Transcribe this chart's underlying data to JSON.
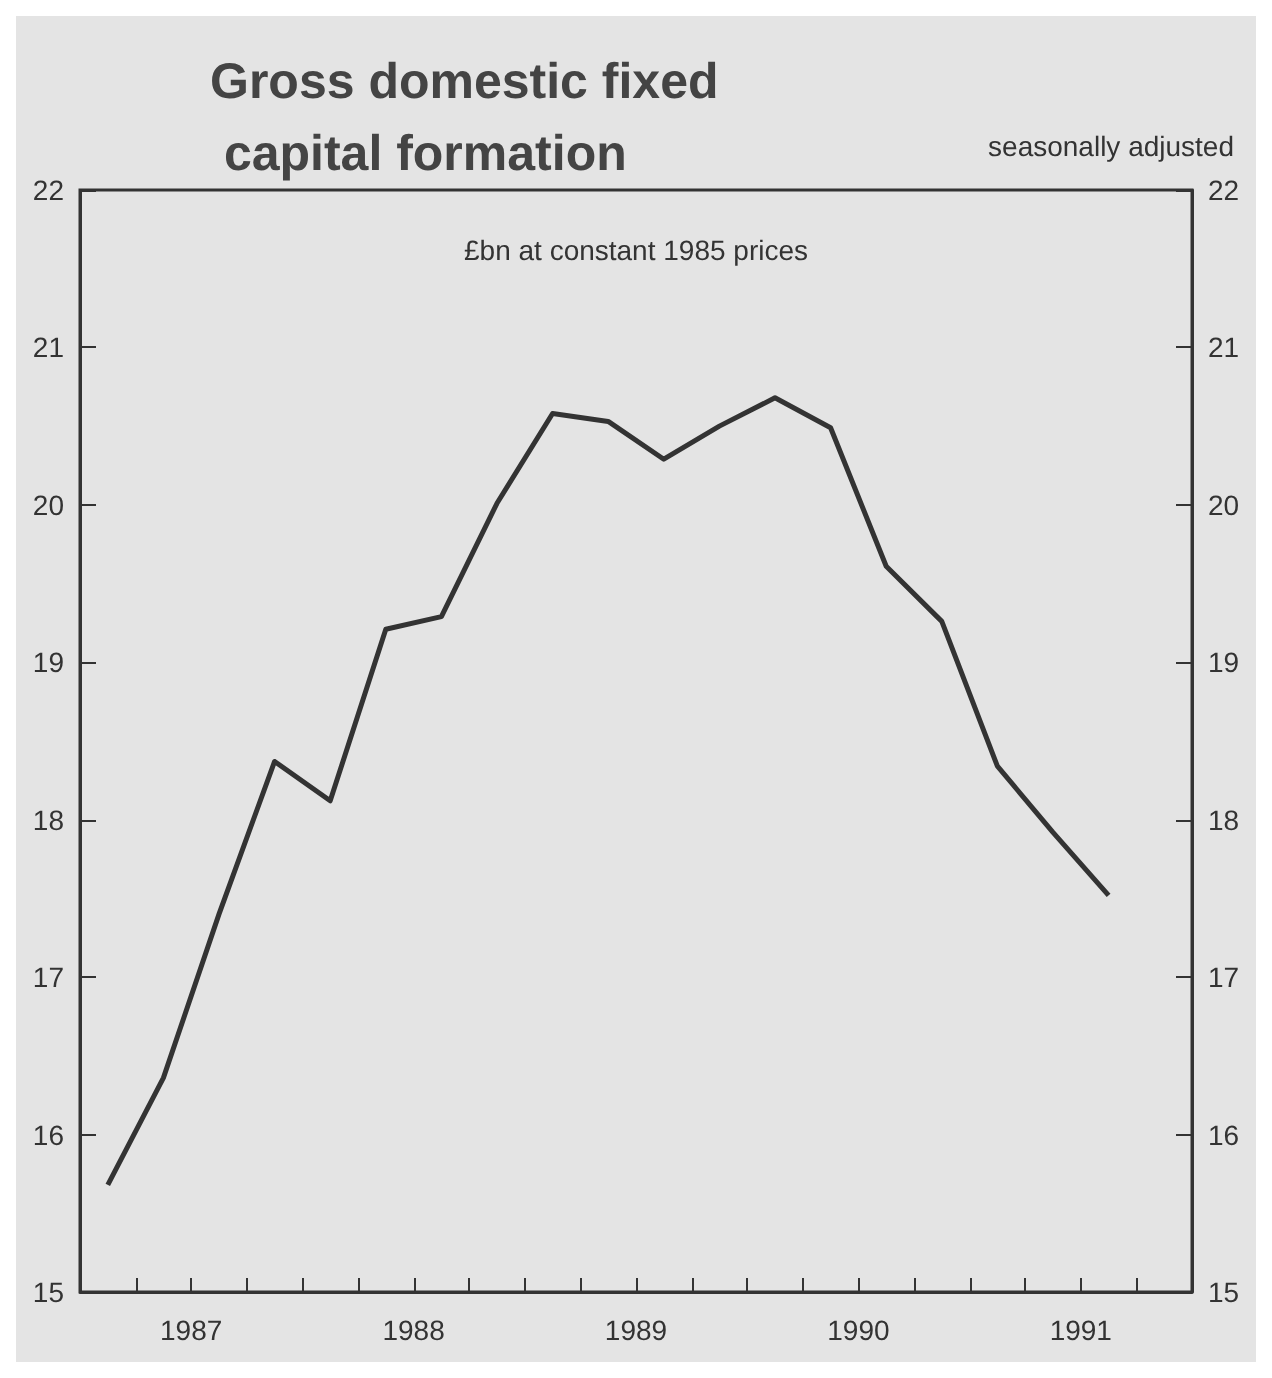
{
  "chart_data": {
    "type": "line",
    "title": "Gross domestic fixed capital formation",
    "subtitle": "seasonally adjusted",
    "annotations": [
      "£bn at constant 1985 prices"
    ],
    "x": [
      1987.125,
      1987.375,
      1987.625,
      1987.875,
      1988.125,
      1988.375,
      1988.625,
      1988.875,
      1989.125,
      1989.375,
      1989.625,
      1989.875,
      1990.125,
      1990.375,
      1990.625,
      1990.875,
      1991.125,
      1991.375,
      1991.625
    ],
    "series": [
      {
        "color": "#333333",
        "values": [
          15.68,
          16.36,
          17.4,
          18.37,
          18.12,
          19.21,
          19.29,
          20.01,
          20.58,
          20.53,
          20.29,
          20.5,
          20.68,
          20.49,
          19.61,
          19.26,
          18.34,
          17.92,
          17.52
        ]
      }
    ],
    "xlim": [
      1987,
      1992
    ],
    "xticks": [
      {
        "value": 1987,
        "label": null
      },
      {
        "value": 1987.25,
        "label": null
      },
      {
        "value": 1987.5,
        "label": "1987"
      },
      {
        "value": 1987.75,
        "label": null
      },
      {
        "value": 1988,
        "label": null
      },
      {
        "value": 1988.25,
        "label": null
      },
      {
        "value": 1988.5,
        "label": "1988"
      },
      {
        "value": 1988.75,
        "label": null
      },
      {
        "value": 1989,
        "label": null
      },
      {
        "value": 1989.25,
        "label": null
      },
      {
        "value": 1989.5,
        "label": "1989"
      },
      {
        "value": 1989.75,
        "label": null
      },
      {
        "value": 1990,
        "label": null
      },
      {
        "value": 1990.25,
        "label": null
      },
      {
        "value": 1990.5,
        "label": "1990"
      },
      {
        "value": 1990.75,
        "label": null
      },
      {
        "value": 1991,
        "label": null
      },
      {
        "value": 1991.25,
        "label": null
      },
      {
        "value": 1991.5,
        "label": "1991"
      },
      {
        "value": 1991.75,
        "label": null
      },
      {
        "value": 1992,
        "label": null
      }
    ],
    "ylim": [
      15,
      22
    ],
    "yticks": [
      15,
      16,
      17,
      18,
      19,
      20,
      21,
      22
    ],
    "y2lim": [
      15,
      22
    ],
    "y2ticks": [
      15,
      16,
      17,
      18,
      19,
      20,
      21,
      22
    ],
    "grid": false,
    "marker": "none",
    "line_style": "solid"
  }
}
